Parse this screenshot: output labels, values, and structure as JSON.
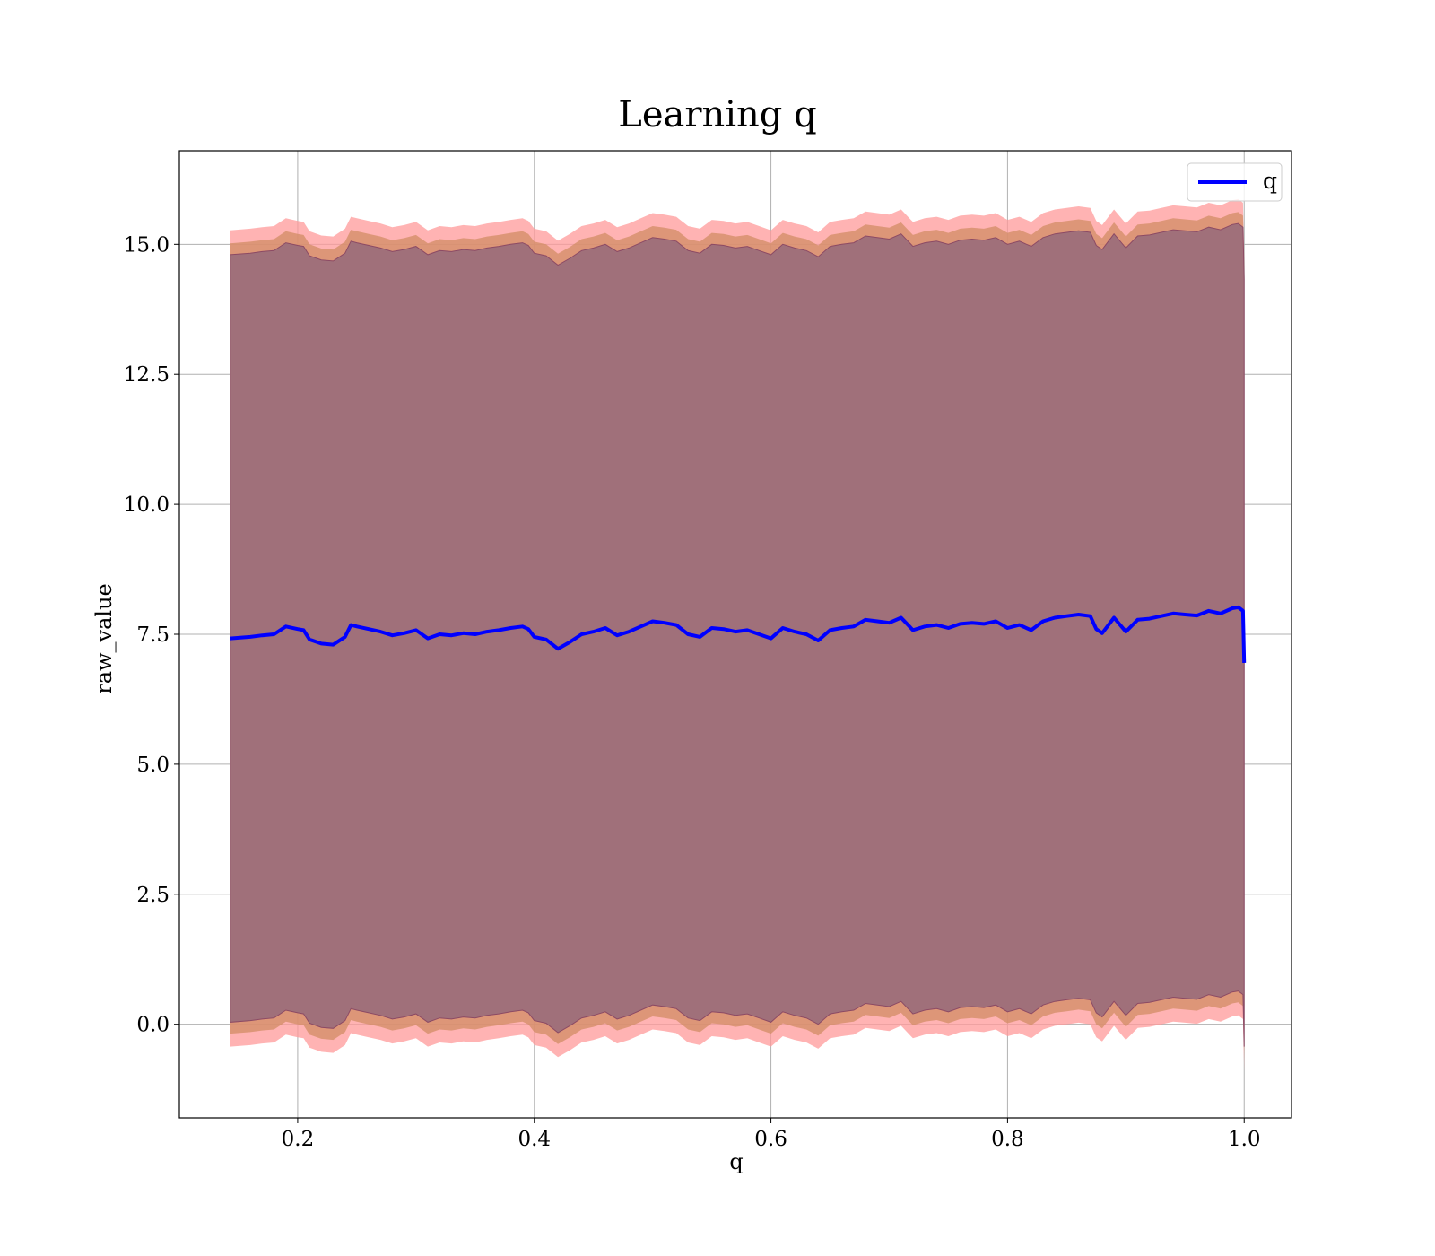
{
  "chart_data": {
    "type": "line",
    "title": "Learning q",
    "xlabel": "q",
    "ylabel": "raw_value",
    "xlim": [
      0.1,
      1.04
    ],
    "ylim": [
      -1.8,
      16.8
    ],
    "grid": true,
    "legend_placement": "top-right",
    "xticks": [
      "0.2",
      "0.4",
      "0.6",
      "0.8",
      "1.0"
    ],
    "yticks": [
      "0.0",
      "2.5",
      "5.0",
      "7.5",
      "10.0",
      "12.5",
      "15.0"
    ],
    "colors": {
      "line": "#0000ff",
      "band_outer": "#ff9999",
      "band_middle": "#d28c64",
      "band_inner": "#a0707a",
      "inner_edge": "#8c4a64"
    },
    "series": [
      {
        "name": "q",
        "x": [
          0.143,
          0.16,
          0.17,
          0.18,
          0.19,
          0.2,
          0.205,
          0.21,
          0.22,
          0.23,
          0.24,
          0.245,
          0.25,
          0.26,
          0.27,
          0.28,
          0.29,
          0.3,
          0.31,
          0.32,
          0.33,
          0.34,
          0.35,
          0.36,
          0.37,
          0.38,
          0.39,
          0.395,
          0.4,
          0.41,
          0.42,
          0.43,
          0.44,
          0.45,
          0.46,
          0.47,
          0.48,
          0.49,
          0.5,
          0.51,
          0.52,
          0.53,
          0.54,
          0.55,
          0.56,
          0.57,
          0.58,
          0.59,
          0.6,
          0.61,
          0.62,
          0.63,
          0.64,
          0.65,
          0.66,
          0.67,
          0.68,
          0.69,
          0.7,
          0.71,
          0.72,
          0.73,
          0.74,
          0.75,
          0.76,
          0.77,
          0.78,
          0.79,
          0.8,
          0.81,
          0.82,
          0.83,
          0.84,
          0.85,
          0.86,
          0.87,
          0.875,
          0.88,
          0.89,
          0.9,
          0.91,
          0.92,
          0.93,
          0.94,
          0.95,
          0.96,
          0.97,
          0.98,
          0.99,
          0.995,
          0.999,
          1.0
        ],
        "y": [
          7.42,
          7.45,
          7.48,
          7.5,
          7.65,
          7.6,
          7.58,
          7.4,
          7.32,
          7.3,
          7.45,
          7.68,
          7.65,
          7.6,
          7.55,
          7.48,
          7.52,
          7.58,
          7.42,
          7.5,
          7.48,
          7.52,
          7.5,
          7.55,
          7.58,
          7.62,
          7.65,
          7.6,
          7.45,
          7.4,
          7.22,
          7.35,
          7.5,
          7.55,
          7.62,
          7.48,
          7.55,
          7.65,
          7.75,
          7.72,
          7.68,
          7.5,
          7.45,
          7.62,
          7.6,
          7.55,
          7.58,
          7.5,
          7.42,
          7.62,
          7.55,
          7.5,
          7.38,
          7.58,
          7.62,
          7.65,
          7.78,
          7.75,
          7.72,
          7.82,
          7.58,
          7.65,
          7.68,
          7.62,
          7.7,
          7.72,
          7.7,
          7.75,
          7.62,
          7.68,
          7.58,
          7.75,
          7.82,
          7.85,
          7.88,
          7.85,
          7.6,
          7.52,
          7.82,
          7.55,
          7.78,
          7.8,
          7.85,
          7.9,
          7.88,
          7.86,
          7.95,
          7.9,
          8.0,
          8.02,
          7.95,
          6.95
        ]
      }
    ],
    "bands": [
      {
        "name": "outer",
        "upper_offset": 7.85,
        "lower_offset": -7.85,
        "alpha": 0.3
      },
      {
        "name": "middle",
        "upper_offset": 7.6,
        "lower_offset": -7.6,
        "alpha": 0.3
      },
      {
        "name": "inner",
        "upper_offset": 7.38,
        "lower_offset": -7.38,
        "alpha": 0.7
      }
    ]
  },
  "legend": {
    "label": "q"
  }
}
